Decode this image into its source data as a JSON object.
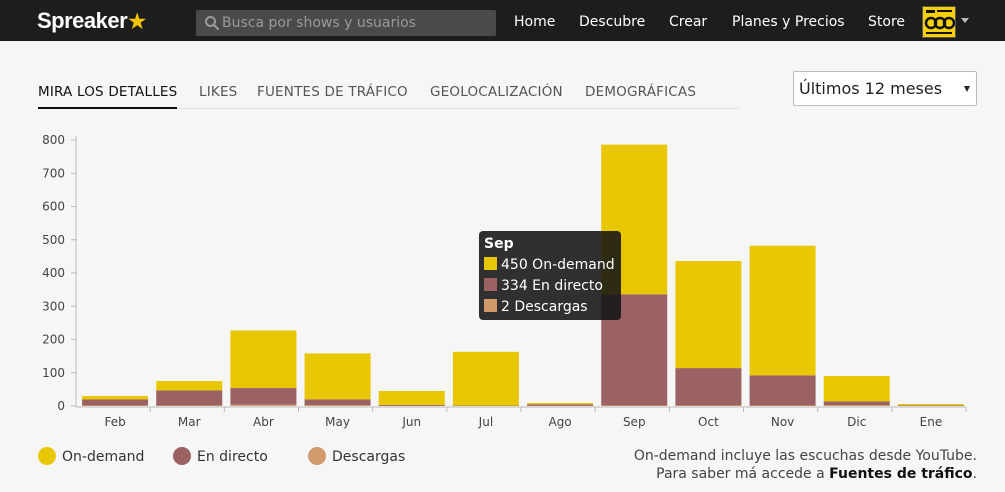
{
  "header": {
    "logo_text": "Spreaker",
    "logo_star": "★",
    "search_placeholder": "Busca por shows y usuarios",
    "nav": [
      "Home",
      "Descubre",
      "Crear",
      "Planes y Precios",
      "Store"
    ],
    "avatar_icon": "user-avatar-icon"
  },
  "tabs": [
    {
      "label": "MIRA LOS DETALLES",
      "active": true
    },
    {
      "label": "LIKES",
      "active": false
    },
    {
      "label": "FUENTES DE TRÁFICO",
      "active": false
    },
    {
      "label": "GEOLOCALIZACIÓN",
      "active": false
    },
    {
      "label": "DEMOGRÁFICAS",
      "active": false
    }
  ],
  "period_select": {
    "value": "Últimos 12 meses"
  },
  "tooltip": {
    "title": "Sep",
    "rows": [
      "450 On-demand",
      "334 En directo",
      "2 Descargas"
    ]
  },
  "legend": [
    "On-demand",
    "En directo",
    "Descargas"
  ],
  "note": {
    "line1": "On-demand incluye las escuchas desde YouTube.",
    "line2_prefix": "Para saber má accede a ",
    "line2_link": "Fuentes de tráfico",
    "line2_suffix": "."
  },
  "colors": {
    "on_demand": "#e8c600",
    "en_directo": "#9a6262",
    "descargas": "#d19a6a",
    "topbar": "#1d1d1d"
  },
  "chart_data": {
    "type": "bar",
    "stacked": true,
    "categories": [
      "Feb",
      "Mar",
      "Abr",
      "May",
      "Jun",
      "Jul",
      "Ago",
      "Sep",
      "Oct",
      "Nov",
      "Dic",
      "Ene"
    ],
    "series": [
      {
        "name": "Descargas",
        "values": [
          2,
          2,
          4,
          3,
          1,
          0,
          1,
          2,
          2,
          2,
          3,
          1
        ]
      },
      {
        "name": "En directo",
        "values": [
          18,
          45,
          50,
          17,
          2,
          1,
          4,
          334,
          112,
          90,
          11,
          1
        ]
      },
      {
        "name": "On-demand",
        "values": [
          10,
          28,
          173,
          138,
          42,
          162,
          4,
          450,
          322,
          390,
          76,
          1
        ]
      }
    ],
    "yticks": [
      0,
      100,
      200,
      300,
      400,
      500,
      600,
      700,
      800
    ],
    "ylim": [
      0,
      800
    ],
    "grid": false,
    "legend_position": "bottom-left"
  }
}
